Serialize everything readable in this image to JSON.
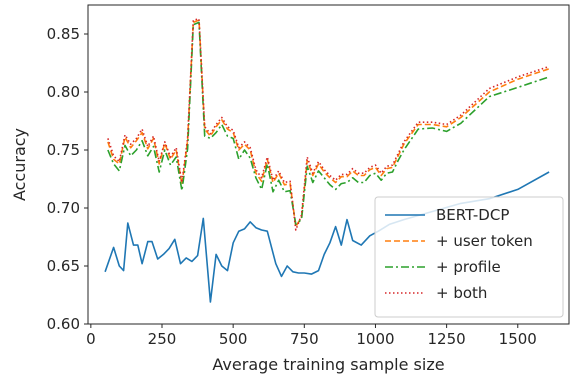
{
  "chart_data": {
    "type": "line",
    "title": "",
    "xlabel": "Average training sample size",
    "ylabel": "Accuracy",
    "xlim": [
      -10,
      1680
    ],
    "ylim": [
      0.6,
      0.875
    ],
    "xticks": [
      0,
      250,
      500,
      750,
      1000,
      1250,
      1500
    ],
    "yticks": [
      0.6,
      0.65,
      0.7,
      0.75,
      0.8,
      0.85
    ],
    "ytick_labels": [
      "0.60",
      "0.65",
      "0.70",
      "0.75",
      "0.80",
      "0.85"
    ],
    "legend_position": "lower-right",
    "grid": false,
    "series": [
      {
        "name": "BERT-DCP",
        "color": "#1f77b4",
        "style": "solid",
        "x": [
          50,
          80,
          100,
          115,
          130,
          150,
          165,
          180,
          200,
          215,
          235,
          255,
          275,
          295,
          315,
          335,
          355,
          375,
          395,
          420,
          440,
          460,
          480,
          500,
          520,
          540,
          560,
          580,
          600,
          620,
          650,
          670,
          690,
          710,
          730,
          750,
          775,
          800,
          820,
          840,
          860,
          880,
          900,
          920,
          950,
          980,
          1010,
          1050,
          1100,
          1200,
          1300,
          1400,
          1500,
          1610
        ],
        "y": [
          0.645,
          0.666,
          0.65,
          0.646,
          0.687,
          0.668,
          0.668,
          0.652,
          0.671,
          0.671,
          0.656,
          0.66,
          0.665,
          0.673,
          0.652,
          0.657,
          0.654,
          0.659,
          0.691,
          0.619,
          0.66,
          0.65,
          0.646,
          0.67,
          0.68,
          0.682,
          0.688,
          0.683,
          0.681,
          0.68,
          0.652,
          0.641,
          0.65,
          0.645,
          0.644,
          0.644,
          0.643,
          0.646,
          0.66,
          0.67,
          0.684,
          0.668,
          0.69,
          0.672,
          0.668,
          0.676,
          0.68,
          0.686,
          0.69,
          0.697,
          0.704,
          0.708,
          0.716,
          0.731
        ]
      },
      {
        "name": "+ user token",
        "color": "#ff7f0e",
        "style": "dashed",
        "x": [
          60,
          80,
          100,
          120,
          140,
          160,
          180,
          200,
          220,
          240,
          260,
          280,
          300,
          320,
          340,
          360,
          380,
          400,
          420,
          440,
          460,
          480,
          500,
          520,
          540,
          560,
          580,
          600,
          620,
          640,
          660,
          680,
          700,
          720,
          740,
          760,
          780,
          800,
          820,
          840,
          860,
          880,
          900,
          920,
          940,
          960,
          980,
          1000,
          1020,
          1040,
          1060,
          1080,
          1100,
          1150,
          1200,
          1250,
          1300,
          1400,
          1500,
          1610
        ],
        "y": [
          0.757,
          0.742,
          0.738,
          0.761,
          0.752,
          0.758,
          0.765,
          0.751,
          0.76,
          0.738,
          0.756,
          0.742,
          0.75,
          0.72,
          0.758,
          0.86,
          0.862,
          0.768,
          0.762,
          0.77,
          0.776,
          0.768,
          0.765,
          0.75,
          0.755,
          0.75,
          0.73,
          0.723,
          0.742,
          0.722,
          0.73,
          0.72,
          0.721,
          0.684,
          0.692,
          0.741,
          0.728,
          0.738,
          0.731,
          0.726,
          0.722,
          0.727,
          0.727,
          0.732,
          0.728,
          0.728,
          0.733,
          0.735,
          0.728,
          0.734,
          0.735,
          0.745,
          0.755,
          0.772,
          0.772,
          0.77,
          0.778,
          0.8,
          0.811,
          0.82
        ]
      },
      {
        "name": "+ profile",
        "color": "#2ca02c",
        "style": "dashdot",
        "x": [
          60,
          80,
          100,
          120,
          140,
          160,
          180,
          200,
          220,
          240,
          260,
          280,
          300,
          320,
          340,
          360,
          380,
          400,
          420,
          440,
          460,
          480,
          500,
          520,
          540,
          560,
          580,
          600,
          620,
          640,
          660,
          680,
          700,
          720,
          740,
          760,
          780,
          800,
          820,
          840,
          860,
          880,
          900,
          920,
          940,
          960,
          980,
          1000,
          1020,
          1040,
          1060,
          1080,
          1100,
          1150,
          1200,
          1250,
          1300,
          1400,
          1500,
          1610
        ],
        "y": [
          0.75,
          0.738,
          0.732,
          0.754,
          0.745,
          0.75,
          0.758,
          0.745,
          0.753,
          0.731,
          0.75,
          0.737,
          0.744,
          0.715,
          0.751,
          0.858,
          0.86,
          0.762,
          0.76,
          0.765,
          0.772,
          0.762,
          0.76,
          0.742,
          0.75,
          0.743,
          0.726,
          0.716,
          0.738,
          0.714,
          0.724,
          0.714,
          0.715,
          0.686,
          0.69,
          0.736,
          0.722,
          0.732,
          0.726,
          0.72,
          0.716,
          0.721,
          0.722,
          0.726,
          0.722,
          0.722,
          0.728,
          0.73,
          0.724,
          0.73,
          0.731,
          0.741,
          0.75,
          0.768,
          0.769,
          0.766,
          0.773,
          0.796,
          0.804,
          0.813
        ]
      },
      {
        "name": "+ both",
        "color": "#d62728",
        "style": "dotted",
        "x": [
          60,
          80,
          100,
          120,
          140,
          160,
          180,
          200,
          220,
          240,
          260,
          280,
          300,
          320,
          340,
          360,
          380,
          400,
          420,
          440,
          460,
          480,
          500,
          520,
          540,
          560,
          580,
          600,
          620,
          640,
          660,
          680,
          700,
          720,
          740,
          760,
          780,
          800,
          820,
          840,
          860,
          880,
          900,
          920,
          940,
          960,
          980,
          1000,
          1020,
          1040,
          1060,
          1080,
          1100,
          1150,
          1200,
          1250,
          1300,
          1400,
          1500,
          1610
        ],
        "y": [
          0.76,
          0.745,
          0.74,
          0.763,
          0.755,
          0.76,
          0.768,
          0.753,
          0.762,
          0.74,
          0.757,
          0.744,
          0.752,
          0.722,
          0.76,
          0.862,
          0.863,
          0.77,
          0.764,
          0.772,
          0.778,
          0.77,
          0.767,
          0.752,
          0.757,
          0.752,
          0.733,
          0.726,
          0.744,
          0.724,
          0.732,
          0.722,
          0.723,
          0.681,
          0.694,
          0.744,
          0.73,
          0.74,
          0.733,
          0.728,
          0.724,
          0.729,
          0.729,
          0.734,
          0.73,
          0.73,
          0.735,
          0.737,
          0.73,
          0.736,
          0.737,
          0.747,
          0.757,
          0.774,
          0.774,
          0.772,
          0.78,
          0.803,
          0.813,
          0.822
        ]
      }
    ]
  }
}
